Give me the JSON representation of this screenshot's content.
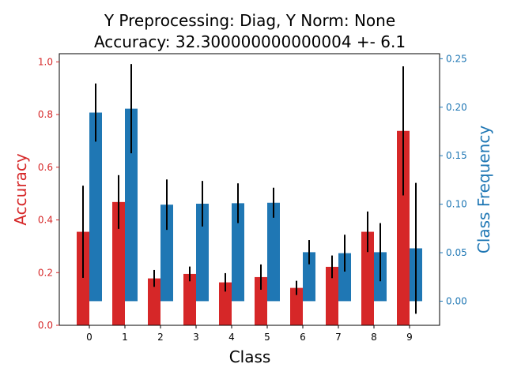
{
  "chart_data": {
    "type": "bar",
    "title_line1": "Y Preprocessing: Diag, Y Norm: None",
    "title_line2": "Accuracy: 32.300000000000004 +- 6.1",
    "xlabel": "Class",
    "ylabel_left": "Accuracy",
    "ylabel_right": "Class Frequency",
    "categories": [
      "0",
      "1",
      "2",
      "3",
      "4",
      "5",
      "6",
      "7",
      "8",
      "9"
    ],
    "accuracy": {
      "name": "Accuracy",
      "color": "#d62728",
      "values": [
        0.355,
        0.468,
        0.178,
        0.195,
        0.163,
        0.183,
        0.142,
        0.222,
        0.355,
        0.738
      ],
      "errors": [
        0.175,
        0.102,
        0.032,
        0.028,
        0.035,
        0.048,
        0.027,
        0.043,
        0.077,
        0.245
      ],
      "ylim": [
        0,
        1.031
      ],
      "ticks": [
        "0.0",
        "0.2",
        "0.4",
        "0.6",
        "0.8",
        "1.0"
      ]
    },
    "frequency": {
      "name": "Class Frequency",
      "color": "#1f77b4",
      "values": [
        0.1945,
        0.1985,
        0.0995,
        0.1005,
        0.101,
        0.1015,
        0.0505,
        0.0495,
        0.0505,
        0.0545
      ],
      "errors": [
        0.03,
        0.046,
        0.026,
        0.0235,
        0.0205,
        0.0155,
        0.0125,
        0.019,
        0.03,
        0.0675
      ],
      "ylim": [
        -0.0249,
        0.2552
      ],
      "ticks": [
        "0.00",
        "0.05",
        "0.10",
        "0.15",
        "0.20",
        "0.25"
      ]
    }
  }
}
